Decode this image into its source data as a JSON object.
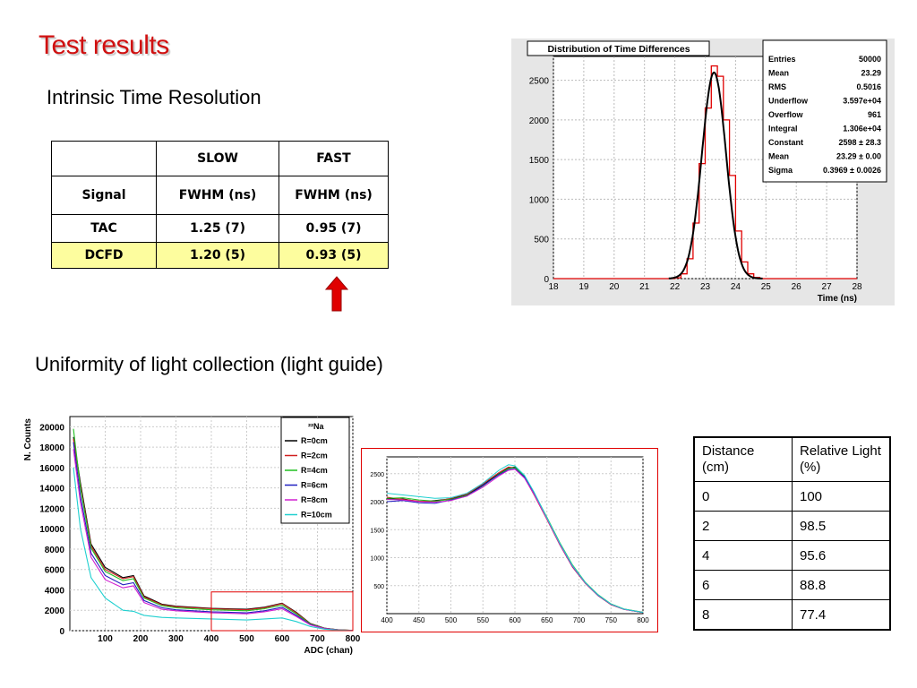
{
  "slide": {
    "title": "Test results",
    "subtitle1": "Intrinsic Time Resolution",
    "subtitle2": "Uniformity of light collection (light guide)"
  },
  "table1": {
    "header": [
      "",
      "SLOW",
      "FAST"
    ],
    "subheader": [
      "Signal",
      "FWHM (ns)",
      "FWHM (ns)"
    ],
    "rows": [
      [
        "TAC",
        "1.25 (7)",
        "0.95 (7)"
      ],
      [
        "DCFD",
        "1.20 (5)",
        "0.93 (5)"
      ]
    ],
    "highlight_color": "#fdfd9e"
  },
  "arrow": {
    "color": "#e00000",
    "direction": "up"
  },
  "table2": {
    "header": [
      "Distance (cm)",
      "Relative Light (%)"
    ],
    "rows": [
      [
        "0",
        "100"
      ],
      [
        "2",
        "98.5"
      ],
      [
        "4",
        "95.6"
      ],
      [
        "6",
        "88.8"
      ],
      [
        "8",
        "77.4"
      ]
    ]
  },
  "chart_data": [
    {
      "type": "histogram",
      "title": "Distribution of Time Differences",
      "xlabel": "Time (ns)",
      "ylabel": "",
      "xlim": [
        18,
        28
      ],
      "ylim": [
        0,
        2800
      ],
      "xticks": [
        "18",
        "19",
        "20",
        "21",
        "22",
        "23",
        "24",
        "25",
        "26",
        "27",
        "28"
      ],
      "yticks": [
        "0",
        "500",
        "1000",
        "1500",
        "2000",
        "2500"
      ],
      "grid": true,
      "fit": "gaussian",
      "stats_box": [
        [
          "Entries",
          "50000"
        ],
        [
          "Mean",
          "23.29"
        ],
        [
          "RMS",
          "0.5016"
        ],
        [
          "Underflow",
          "3.597e+04"
        ],
        [
          "Overflow",
          "961"
        ],
        [
          "Integral",
          "1.306e+04"
        ],
        [
          "Constant",
          "2598 ± 28.3"
        ],
        [
          "Mean",
          "23.29 ± 0.00"
        ],
        [
          "Sigma",
          "0.3969 ± 0.0026"
        ]
      ],
      "x": [
        22.0,
        22.2,
        22.4,
        22.6,
        22.8,
        23.0,
        23.2,
        23.4,
        23.6,
        23.8,
        24.0,
        24.2,
        24.4,
        24.6
      ],
      "values": [
        10,
        60,
        250,
        700,
        1450,
        2150,
        2680,
        2550,
        2000,
        1300,
        600,
        210,
        60,
        15
      ],
      "colors": {
        "histogram": "#e00000",
        "fit": "#000000"
      }
    },
    {
      "type": "line",
      "title": "",
      "legend_title": "²²Na",
      "xlabel": "ADC (chan)",
      "ylabel": "N. Counts",
      "xlim": [
        0,
        800
      ],
      "ylim": [
        0,
        21000
      ],
      "xticks": [
        "100",
        "200",
        "300",
        "400",
        "500",
        "600",
        "700",
        "800"
      ],
      "yticks": [
        "0",
        "2000",
        "4000",
        "6000",
        "8000",
        "10000",
        "12000",
        "14000",
        "16000",
        "18000",
        "20000"
      ],
      "grid": true,
      "legend_position": "top-right",
      "x": [
        10,
        30,
        60,
        100,
        150,
        180,
        210,
        260,
        300,
        400,
        500,
        550,
        600,
        640,
        680,
        720,
        760,
        800
      ],
      "series": [
        {
          "name": "R=0cm",
          "color": "#000000",
          "values": [
            19000,
            14500,
            8500,
            6200,
            5200,
            5400,
            3400,
            2600,
            2400,
            2200,
            2100,
            2300,
            2700,
            1800,
            700,
            250,
            80,
            30
          ]
        },
        {
          "name": "R=2cm",
          "color": "#d02020",
          "values": [
            18800,
            14200,
            8300,
            6000,
            5100,
            5300,
            3300,
            2550,
            2350,
            2150,
            2050,
            2250,
            2650,
            1750,
            680,
            240,
            75,
            30
          ]
        },
        {
          "name": "R=4cm",
          "color": "#20c020",
          "values": [
            19800,
            14000,
            8100,
            5800,
            4900,
            5100,
            3200,
            2450,
            2250,
            2050,
            1950,
            2150,
            2500,
            1650,
            650,
            230,
            70,
            30
          ]
        },
        {
          "name": "R=6cm",
          "color": "#2020c0",
          "values": [
            18500,
            13200,
            7600,
            5400,
            4500,
            4700,
            2950,
            2250,
            2050,
            1850,
            1750,
            1950,
            2300,
            1500,
            600,
            210,
            65,
            25
          ]
        },
        {
          "name": "R=8cm",
          "color": "#d020d0",
          "values": [
            17800,
            12600,
            7200,
            5000,
            4200,
            4400,
            2750,
            2100,
            1950,
            1750,
            1650,
            1850,
            2150,
            1400,
            560,
            200,
            60,
            25
          ]
        },
        {
          "name": "R=10cm",
          "color": "#20d0d0",
          "values": [
            16000,
            10000,
            5200,
            3200,
            2000,
            1900,
            1500,
            1300,
            1250,
            1150,
            1050,
            1150,
            1250,
            900,
            400,
            150,
            50,
            20
          ]
        }
      ],
      "highlight_region": {
        "x": [
          400,
          800
        ],
        "y": [
          0,
          3800
        ],
        "color": "#e00000"
      }
    },
    {
      "type": "line",
      "title": "",
      "xlabel": "",
      "ylabel": "",
      "xlim": [
        400,
        800
      ],
      "ylim": [
        0,
        2800
      ],
      "xticks": [
        "400",
        "450",
        "500",
        "550",
        "600",
        "650",
        "700",
        "750",
        "800"
      ],
      "yticks": [
        "500",
        "1000",
        "1500",
        "2000",
        "2500"
      ],
      "grid": true,
      "frame_color": "#e00000",
      "x": [
        400,
        425,
        450,
        475,
        500,
        525,
        550,
        575,
        590,
        600,
        615,
        630,
        650,
        670,
        690,
        710,
        730,
        750,
        770,
        800
      ],
      "series": [
        {
          "color": "#000000",
          "values": [
            2050,
            2050,
            2000,
            2020,
            2050,
            2120,
            2300,
            2500,
            2600,
            2620,
            2450,
            2150,
            1700,
            1250,
            850,
            550,
            330,
            170,
            80,
            20
          ]
        },
        {
          "color": "#d02020",
          "values": [
            2080,
            2040,
            2010,
            2000,
            2060,
            2140,
            2320,
            2520,
            2620,
            2600,
            2430,
            2120,
            1680,
            1230,
            830,
            540,
            320,
            160,
            75,
            20
          ]
        },
        {
          "color": "#20c020",
          "values": [
            2060,
            2070,
            2030,
            2010,
            2040,
            2110,
            2280,
            2490,
            2590,
            2610,
            2460,
            2160,
            1720,
            1270,
            870,
            560,
            340,
            175,
            85,
            25
          ]
        },
        {
          "color": "#2020c0",
          "values": [
            2000,
            2020,
            1980,
            1970,
            2030,
            2100,
            2290,
            2480,
            2570,
            2590,
            2440,
            2140,
            1700,
            1240,
            840,
            545,
            325,
            165,
            80,
            20
          ]
        },
        {
          "color": "#d020d0",
          "values": [
            2040,
            2030,
            2000,
            1990,
            2020,
            2100,
            2260,
            2460,
            2560,
            2580,
            2420,
            2130,
            1690,
            1240,
            845,
            548,
            330,
            168,
            78,
            22
          ]
        },
        {
          "color": "#20d0d0",
          "values": [
            2150,
            2120,
            2090,
            2060,
            2070,
            2150,
            2330,
            2560,
            2660,
            2640,
            2470,
            2170,
            1710,
            1260,
            860,
            555,
            335,
            172,
            82,
            22
          ]
        }
      ]
    }
  ]
}
